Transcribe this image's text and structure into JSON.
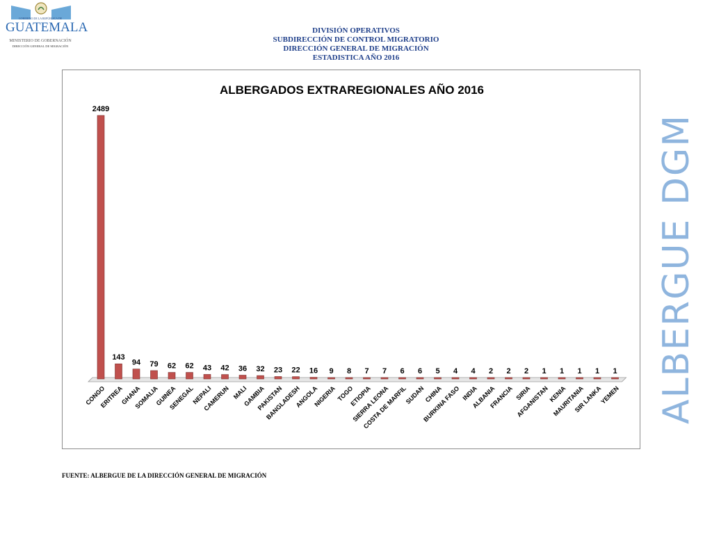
{
  "logo": {
    "top_text": "GOBIERNO DE LA REPÚBLICA DE",
    "name": "GUATEMALA",
    "ministry": "MINISTERIO DE GOBERNACIÓN",
    "department": "DIRECCIÓN GENERAL DE MIGRACIÓN",
    "accent": "#6aa8d8"
  },
  "header": {
    "line1": "DIVISIÓN OPERATIVOS",
    "line2": "SUBDIRECCIÓN DE CONTROL MIGRATORIO",
    "line3": "DIRECCIÓN GENERAL DE MIGRACIÓN",
    "line4": "ESTADISTICA AÑO 2016"
  },
  "side_title": "ALBERGUE DGM",
  "source": "FUENTE: ALBERGUE DE LA DIRECCIÓN GENERAL DE MIGRACIÓN",
  "chart_data": {
    "type": "bar",
    "title": "ALBERGADOS EXTRAREGIONALES AÑO 2016",
    "xlabel": "",
    "ylabel": "",
    "ylim": [
      0,
      2489
    ],
    "grid": false,
    "legend": "none",
    "bar_color": "#c0504d",
    "categories": [
      "CONGO",
      "ERITREA",
      "GHANA",
      "SOMALIA",
      "GUINEA",
      "SENEGAL",
      "NEPALI",
      "CAMERUN",
      "MALI",
      "GAMBIA",
      "PAKISTAN",
      "BANGLADESH",
      "ANGOLA",
      "NIGERIA",
      "TOGO",
      "ETIOPIA",
      "SIERRA LEONA",
      "COSTA DE MARFIL",
      "SUDAN",
      "CHINA",
      "BURKINA FASO",
      "INDIA",
      "ALBANIA",
      "FRANCIA",
      "SIRIA",
      "AFGANISTAN",
      "KENIA",
      "MAURITANIA",
      "SIR LANKA",
      "YEMEN"
    ],
    "values": [
      2489,
      143,
      94,
      79,
      62,
      62,
      43,
      42,
      36,
      32,
      23,
      22,
      16,
      9,
      8,
      7,
      7,
      6,
      6,
      5,
      4,
      4,
      2,
      2,
      2,
      1,
      1,
      1,
      1,
      1
    ]
  }
}
